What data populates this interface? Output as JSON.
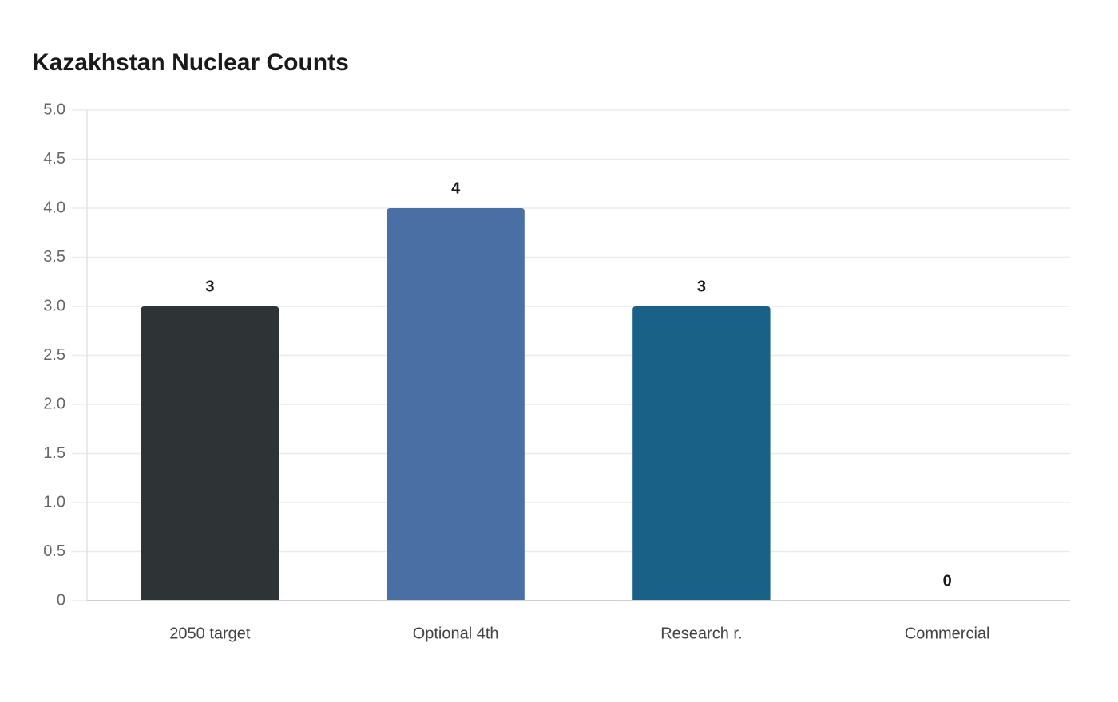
{
  "chart_data": {
    "type": "bar",
    "title": "Kazakhstan Nuclear Counts",
    "categories": [
      "2050 target",
      "Optional 4th",
      "Research r.",
      "Commercial"
    ],
    "values": [
      3,
      4,
      3,
      0
    ],
    "colors": [
      "#2e3436",
      "#4a6fa5",
      "#1a6187",
      "#3a7ca5"
    ],
    "ylim": [
      0,
      5
    ],
    "yticks": [
      0,
      0.5,
      {
        "value": 1,
        "label": "1.0"
      },
      1.5,
      {
        "value": 2,
        "label": "2.0"
      },
      2.5,
      {
        "value": 3,
        "label": "3.0"
      },
      3.5,
      {
        "value": 4,
        "label": "4.0"
      },
      4.5,
      {
        "value": 5,
        "label": "5.0"
      }
    ],
    "grid": true
  }
}
